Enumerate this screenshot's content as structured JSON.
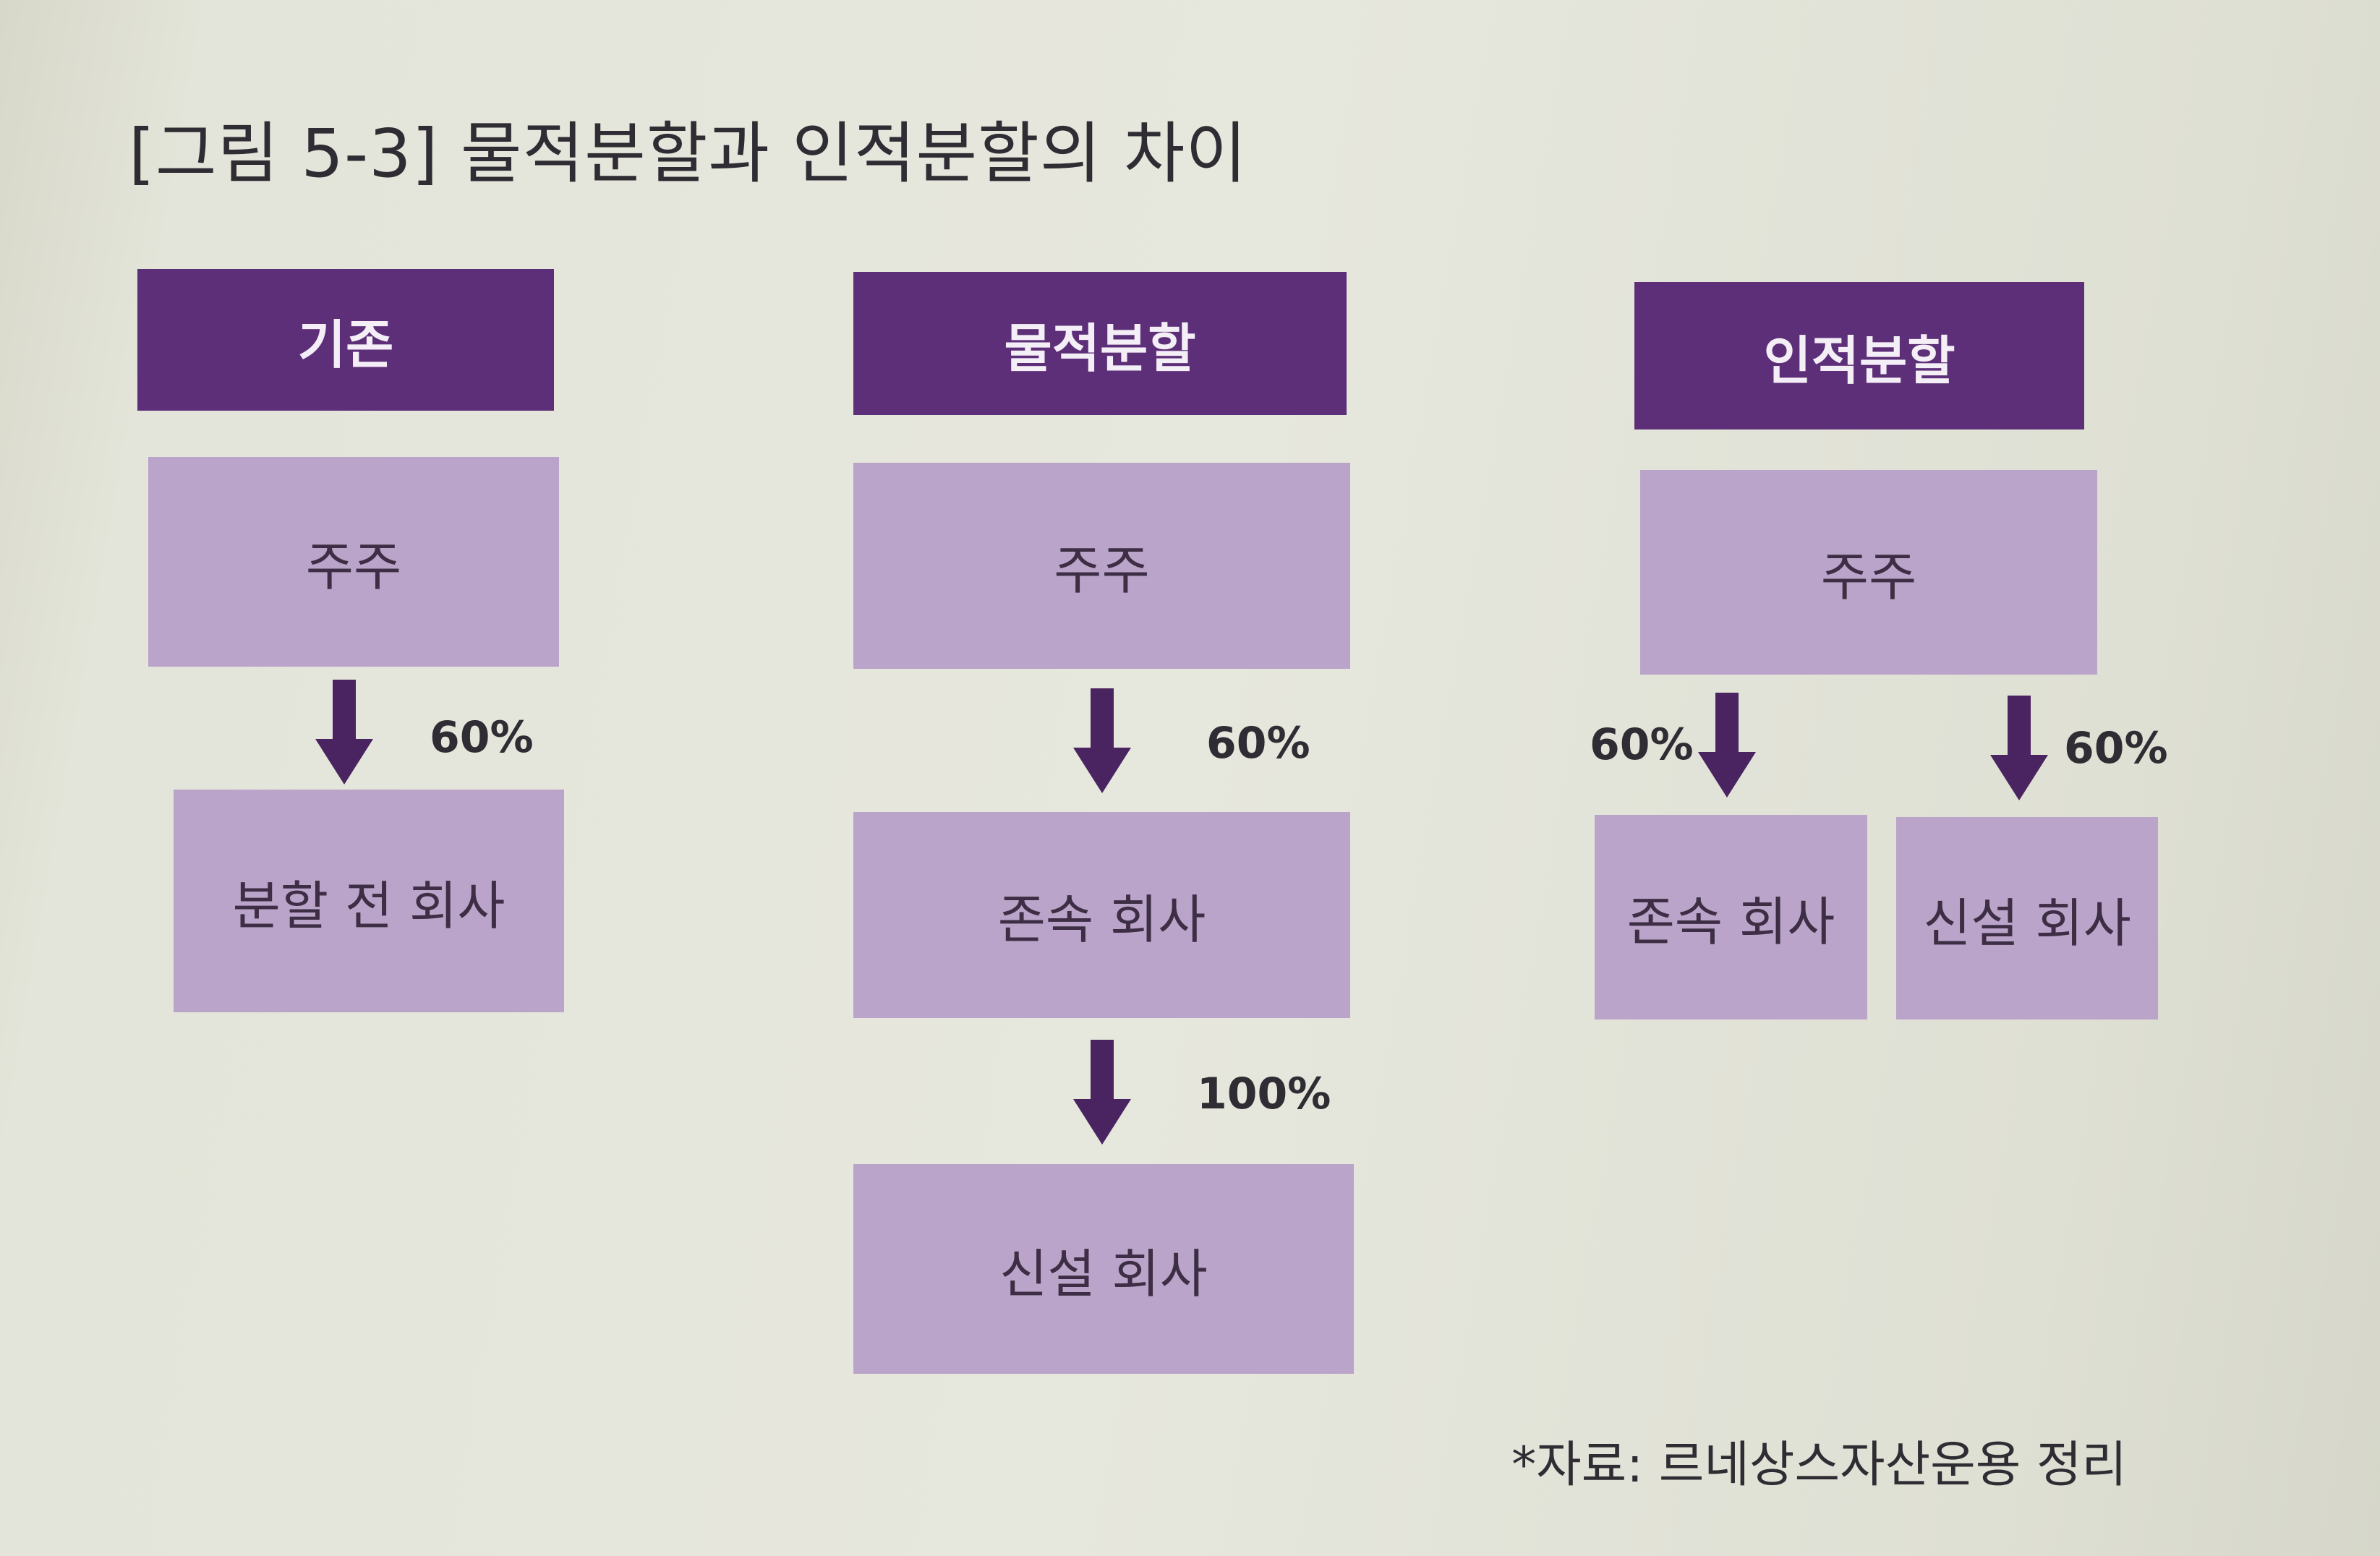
{
  "title": "[그림 5-3] 물적분할과 인적분할의 차이",
  "colors": {
    "header_bg": "#5d2f78",
    "node_bg": "#bba4c9",
    "arrow": "#4a2460"
  },
  "columns": {
    "existing": {
      "header": "기존",
      "shareholder": "주주",
      "arrow_pct": "60%",
      "company": "분할 전 회사"
    },
    "physical": {
      "header": "물적분할",
      "shareholder": "주주",
      "arrow1_pct": "60%",
      "surviving": "존속 회사",
      "arrow2_pct": "100%",
      "new": "신설 회사"
    },
    "personal": {
      "header": "인적분할",
      "shareholder": "주주",
      "left_pct": "60%",
      "right_pct": "60%",
      "surviving": "존속 회사",
      "new": "신설 회사"
    }
  },
  "source": "*자료: 르네상스자산운용 정리"
}
